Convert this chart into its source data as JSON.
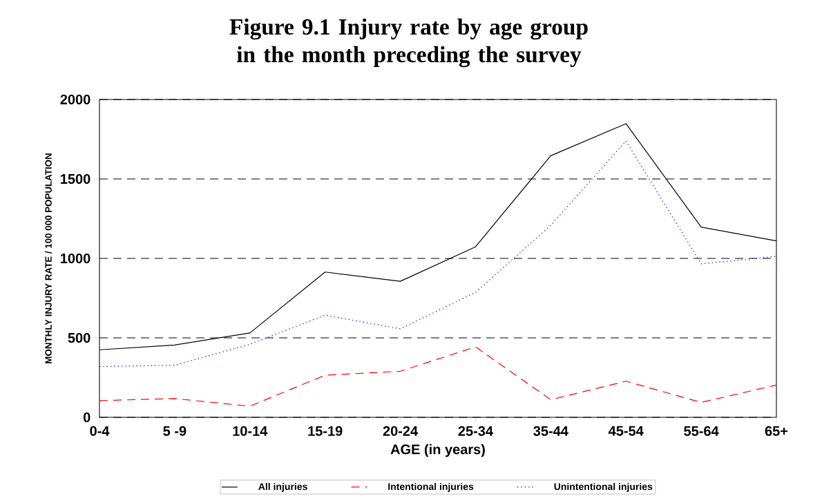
{
  "chart_data": {
    "type": "line",
    "title": "Figure 9.1  Injury rate by age group\nin the month preceding the survey",
    "xlabel": "AGE  (in years)",
    "ylabel": "MONTHLY INJURY RATE / 100 000 POPULATION",
    "categories": [
      "0-4",
      "5 -9",
      "10-14",
      "15-19",
      "20-24",
      "25-34",
      "35-44",
      "45-54",
      "55-64",
      "65+"
    ],
    "series": [
      {
        "name": "All injuries",
        "color": "#000000",
        "line_style": "solid",
        "values": [
          425,
          455,
          531,
          914,
          856,
          1073,
          1646,
          1848,
          1197,
          1110
        ]
      },
      {
        "name": "Intentional injuries",
        "color": "#ff0000",
        "line_style": "dashed",
        "values": [
          105,
          118,
          70,
          265,
          290,
          443,
          111,
          227,
          94,
          203
        ]
      },
      {
        "name": "Unintentional injuries",
        "color": "#0000ff",
        "line_style": "dotted",
        "values": [
          319,
          328,
          459,
          643,
          557,
          786,
          1208,
          1739,
          966,
          1013
        ]
      }
    ],
    "ylim": [
      0,
      2000
    ],
    "yticks": [
      0,
      500,
      1000,
      1500,
      2000
    ],
    "grid": "y",
    "legend": "bottom",
    "marker": "none"
  }
}
